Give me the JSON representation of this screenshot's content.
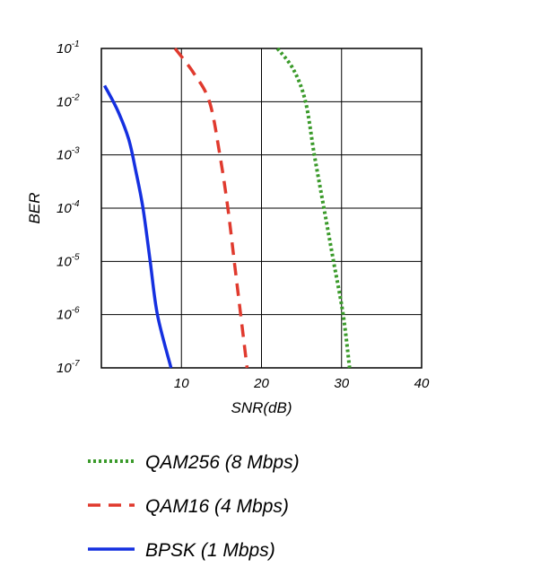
{
  "chart_data": {
    "type": "line",
    "title": "",
    "xlabel": "SNR(dB)",
    "ylabel": "BER",
    "xlim": [
      0,
      40
    ],
    "ylim": [
      1e-07,
      0.1
    ],
    "yscale": "log",
    "grid": true,
    "x_tick_labels": [
      "10",
      "20",
      "30",
      "40"
    ],
    "x_ticks": [
      10,
      20,
      30,
      40
    ],
    "y_ticks": [
      {
        "value": 0.1,
        "base": "10",
        "exp": "-1"
      },
      {
        "value": 0.01,
        "base": "10",
        "exp": "-2"
      },
      {
        "value": 0.001,
        "base": "10",
        "exp": "-3"
      },
      {
        "value": 0.0001,
        "base": "10",
        "exp": "-4"
      },
      {
        "value": 1e-05,
        "base": "10",
        "exp": "-5"
      },
      {
        "value": 1e-06,
        "base": "10",
        "exp": "-6"
      },
      {
        "value": 1e-07,
        "base": "10",
        "exp": "-7"
      }
    ],
    "legend_position": "bottom",
    "series": [
      {
        "name": "QAM256 (8 Mbps)",
        "color": "#3a9a2a",
        "style": "dotted",
        "points": [
          [
            22.0,
            0.1
          ],
          [
            24.0,
            0.04
          ],
          [
            25.5,
            0.01
          ],
          [
            26.6,
            0.001
          ],
          [
            27.8,
            0.0001
          ],
          [
            29.0,
            1e-05
          ],
          [
            30.2,
            1e-06
          ],
          [
            31.0,
            1e-07
          ]
        ]
      },
      {
        "name": "QAM16 (4 Mbps)",
        "color": "#e03a2e",
        "style": "dashed",
        "points": [
          [
            9.2,
            0.1
          ],
          [
            11.5,
            0.035
          ],
          [
            13.5,
            0.01
          ],
          [
            14.8,
            0.001
          ],
          [
            15.8,
            0.0001
          ],
          [
            16.6,
            1e-05
          ],
          [
            17.4,
            1e-06
          ],
          [
            18.2,
            1e-07
          ]
        ]
      },
      {
        "name": "BPSK (1 Mbps)",
        "color": "#1530e0",
        "style": "solid",
        "points": [
          [
            0.4,
            0.02
          ],
          [
            2.0,
            0.007
          ],
          [
            3.4,
            0.002
          ],
          [
            4.3,
            0.0005
          ],
          [
            5.2,
            0.0001
          ],
          [
            6.1,
            1e-05
          ],
          [
            7.0,
            1e-06
          ],
          [
            8.7,
            1e-07
          ]
        ]
      }
    ]
  }
}
